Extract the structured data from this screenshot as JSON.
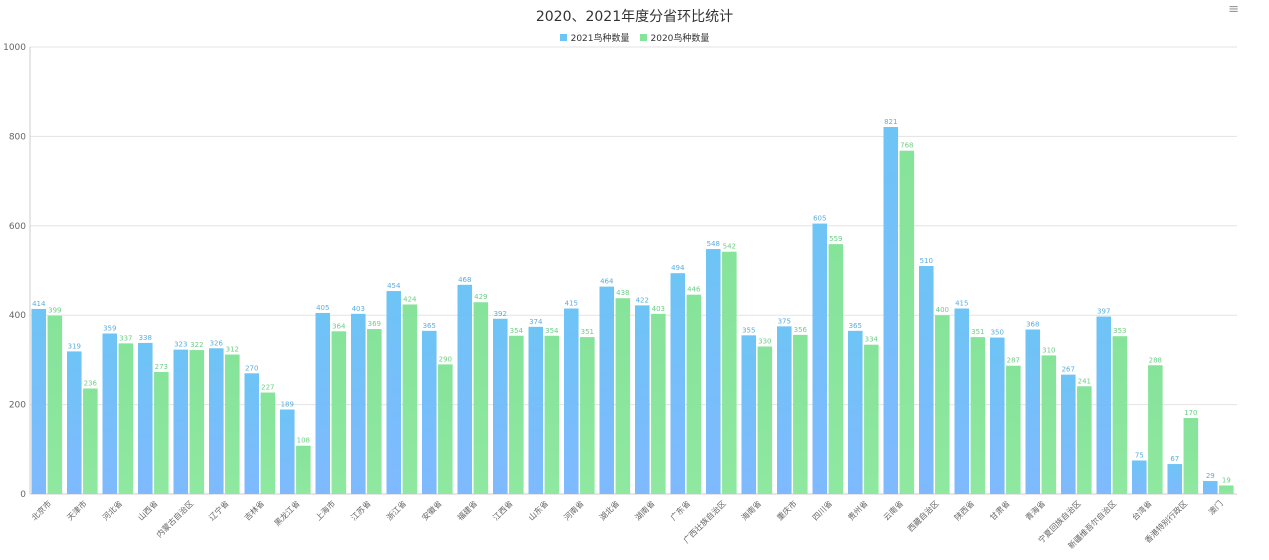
{
  "page": {
    "menu_icon": "hamburger-menu-icon"
  },
  "chart_data": {
    "type": "bar",
    "title": "2020、2021年度分省环比统计",
    "xlabel": "",
    "ylabel": "",
    "ylim": [
      0,
      1000
    ],
    "yticks": [
      0,
      200,
      400,
      600,
      800,
      1000
    ],
    "grid": true,
    "legend_position": "top-center",
    "categories": [
      "北京市",
      "天津市",
      "河北省",
      "山西省",
      "内蒙古自治区",
      "辽宁省",
      "吉林省",
      "黑龙江省",
      "上海市",
      "江苏省",
      "浙江省",
      "安徽省",
      "福建省",
      "江西省",
      "山东省",
      "河南省",
      "湖北省",
      "湖南省",
      "广东省",
      "广西壮族自治区",
      "海南省",
      "重庆市",
      "四川省",
      "贵州省",
      "云南省",
      "西藏自治区",
      "陕西省",
      "甘肃省",
      "青海省",
      "宁夏回族自治区",
      "新疆维吾尔自治区",
      "台湾省",
      "香港特别行政区",
      "澳门"
    ],
    "series": [
      {
        "name": "2021鸟种数量",
        "color": "#6ec4f5",
        "values": [
          414,
          319,
          359,
          338,
          323,
          326,
          270,
          189,
          405,
          403,
          454,
          365,
          468,
          392,
          374,
          415,
          464,
          422,
          494,
          548,
          355,
          375,
          605,
          365,
          821,
          510,
          415,
          350,
          368,
          267,
          397,
          75,
          67,
          29
        ]
      },
      {
        "name": "2020鸟种数量",
        "color": "#86e39a",
        "values": [
          399,
          236,
          337,
          273,
          322,
          312,
          227,
          108,
          364,
          369,
          424,
          290,
          429,
          354,
          354,
          351,
          438,
          403,
          446,
          542,
          330,
          356,
          559,
          334,
          768,
          400,
          351,
          287,
          310,
          241,
          353,
          288,
          170,
          19
        ]
      }
    ]
  }
}
